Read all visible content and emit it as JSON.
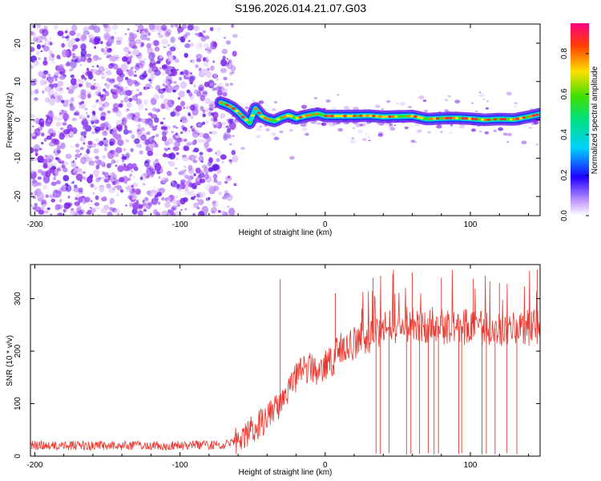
{
  "title": "S196.2026.014.21.07.G03",
  "chart_data": [
    {
      "type": "heatmap",
      "name": "spectrogram",
      "title": "",
      "xlabel": "Height of straight line (km)",
      "ylabel": "Frequency (Hz)",
      "xlim": [
        -203,
        148
      ],
      "ylim": [
        -25,
        25
      ],
      "xticks": [
        -200,
        -100,
        0,
        100
      ],
      "yticks": [
        -20,
        -10,
        0,
        10,
        20
      ],
      "noise_region_x": [
        -203,
        -62
      ],
      "ridge": {
        "x": [
          -72,
          -68,
          -64,
          -60,
          -56,
          -52,
          -48,
          -44,
          -40,
          -35,
          -30,
          -25,
          -20,
          -15,
          -10,
          -5,
          0,
          10,
          20,
          30,
          40,
          50,
          60,
          70,
          80,
          90,
          100,
          110,
          120,
          130,
          140,
          148
        ],
        "y": [
          4.5,
          4.0,
          3.2,
          2.0,
          0.5,
          -0.8,
          3.0,
          1.0,
          0.2,
          -0.3,
          0.6,
          1.2,
          0.4,
          0.9,
          1.3,
          1.6,
          1.0,
          1.0,
          1.0,
          1.1,
          0.8,
          0.9,
          1.0,
          0.2,
          0.4,
          0.5,
          0.3,
          0.0,
          0.2,
          0.1,
          0.8,
          1.5
        ]
      },
      "colorbar": {
        "label": "Normalized spectral amplitude",
        "range": [
          0.0,
          0.95
        ],
        "ticks": [
          0.0,
          0.2,
          0.4,
          0.6,
          0.8
        ]
      }
    },
    {
      "type": "line",
      "name": "snr",
      "title": "",
      "xlabel": "Height of straight line (km)",
      "ylabel": "SNR (10 * v/v)",
      "xlim": [
        -203,
        148
      ],
      "ylim": [
        0,
        365
      ],
      "xticks": [
        -200,
        -100,
        0,
        100
      ],
      "yticks": [
        0,
        100,
        200,
        300
      ],
      "color": "#e8382f",
      "envelope": {
        "x": [
          -203,
          -150,
          -100,
          -70,
          -62,
          -58,
          -50,
          -45,
          -40,
          -35,
          -30,
          -25,
          -20,
          -15,
          -10,
          -5,
          0,
          5,
          10,
          20,
          30,
          40,
          50,
          60,
          70,
          80,
          90,
          100,
          110,
          120,
          130,
          140,
          148
        ],
        "y": [
          20,
          20,
          20,
          22,
          28,
          40,
          52,
          62,
          72,
          90,
          100,
          125,
          150,
          165,
          170,
          160,
          175,
          185,
          205,
          215,
          230,
          245,
          250,
          252,
          250,
          248,
          247,
          245,
          245,
          243,
          242,
          245,
          248
        ]
      },
      "spikes": [
        {
          "x": -31,
          "y": 337
        },
        {
          "x": 7,
          "y": 310
        },
        {
          "x": 33,
          "y": 340
        },
        {
          "x": 47,
          "y": 355
        },
        {
          "x": 60,
          "y": 350
        },
        {
          "x": 80,
          "y": 340
        },
        {
          "x": 102,
          "y": 338
        },
        {
          "x": 120,
          "y": 330
        },
        {
          "x": 146,
          "y": 355
        }
      ],
      "dropouts": [
        {
          "x": 35,
          "y": 5
        },
        {
          "x": 38,
          "y": 4
        },
        {
          "x": 44,
          "y": 6
        },
        {
          "x": 56,
          "y": 3
        },
        {
          "x": 59,
          "y": 5
        },
        {
          "x": 65,
          "y": 4
        },
        {
          "x": 71,
          "y": 6
        },
        {
          "x": 75,
          "y": 3
        },
        {
          "x": 78,
          "y": 5
        },
        {
          "x": 92,
          "y": 4
        },
        {
          "x": 94,
          "y": 6
        },
        {
          "x": 108,
          "y": 3
        },
        {
          "x": 111,
          "y": 5
        },
        {
          "x": 117,
          "y": 4
        },
        {
          "x": 125,
          "y": 6
        },
        {
          "x": 132,
          "y": 4
        }
      ]
    }
  ]
}
